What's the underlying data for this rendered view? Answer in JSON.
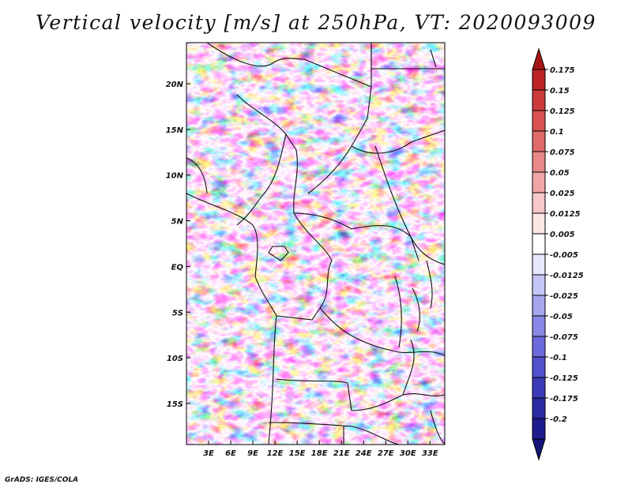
{
  "title": "Vertical velocity [m/s] at 250hPa, VT: 2020093009",
  "footer": "GrADS: IGES/COLA",
  "map": {
    "lon_range": [
      0,
      35
    ],
    "lat_range": [
      -19.5,
      24.5
    ],
    "lon_ticks": [
      "3E",
      "6E",
      "9E",
      "12E",
      "15E",
      "18E",
      "21E",
      "24E",
      "27E",
      "30E",
      "33E"
    ],
    "lon_tick_values": [
      3,
      6,
      9,
      12,
      15,
      18,
      21,
      24,
      27,
      30,
      33
    ],
    "lat_ticks": [
      "20N",
      "15N",
      "10N",
      "5N",
      "EQ",
      "5S",
      "10S",
      "15S"
    ],
    "lat_tick_values": [
      20,
      15,
      10,
      5,
      0,
      -5,
      -10,
      -15
    ]
  },
  "colorbar": {
    "labels": [
      "0.175",
      "0.15",
      "0.125",
      "0.1",
      "0.075",
      "0.05",
      "0.025",
      "0.0125",
      "0.005",
      "-0.005",
      "-0.0125",
      "-0.025",
      "-0.05",
      "-0.075",
      "-0.1",
      "-0.125",
      "-0.175",
      "-0.2"
    ],
    "colors": [
      "#a81616",
      "#bc2424",
      "#cc3b3b",
      "#d85252",
      "#e06a6a",
      "#e98888",
      "#f0a6a6",
      "#f7c8c8",
      "#fde6e6",
      "#ffffff",
      "#e6e6fd",
      "#c6c6f6",
      "#a6a6ef",
      "#8888e6",
      "#6a6adb",
      "#5252cc",
      "#3b3bb8",
      "#2a2aa3",
      "#1c1c8e",
      "#141478"
    ]
  }
}
